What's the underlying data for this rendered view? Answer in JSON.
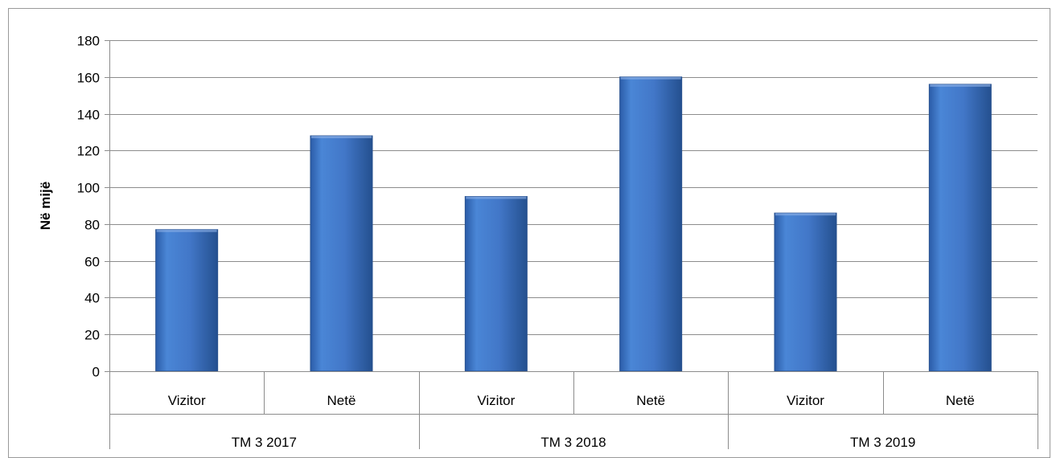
{
  "chart_data": {
    "type": "bar",
    "title": "",
    "ylabel": "Në mijë",
    "xlabel": "",
    "ylim": [
      0,
      180
    ],
    "yticks": [
      0,
      20,
      40,
      60,
      80,
      100,
      120,
      140,
      160,
      180
    ],
    "grid": true,
    "legend": "none",
    "groups": [
      "TM 3 2017",
      "TM 3 2018",
      "TM 3 2019"
    ],
    "categories": [
      "Vizitor",
      "Netë",
      "Vizitor",
      "Netë",
      "Vizitor",
      "Netë"
    ],
    "values": [
      77,
      128,
      95,
      160,
      86,
      156
    ],
    "bar_color": "#3f73c4"
  }
}
